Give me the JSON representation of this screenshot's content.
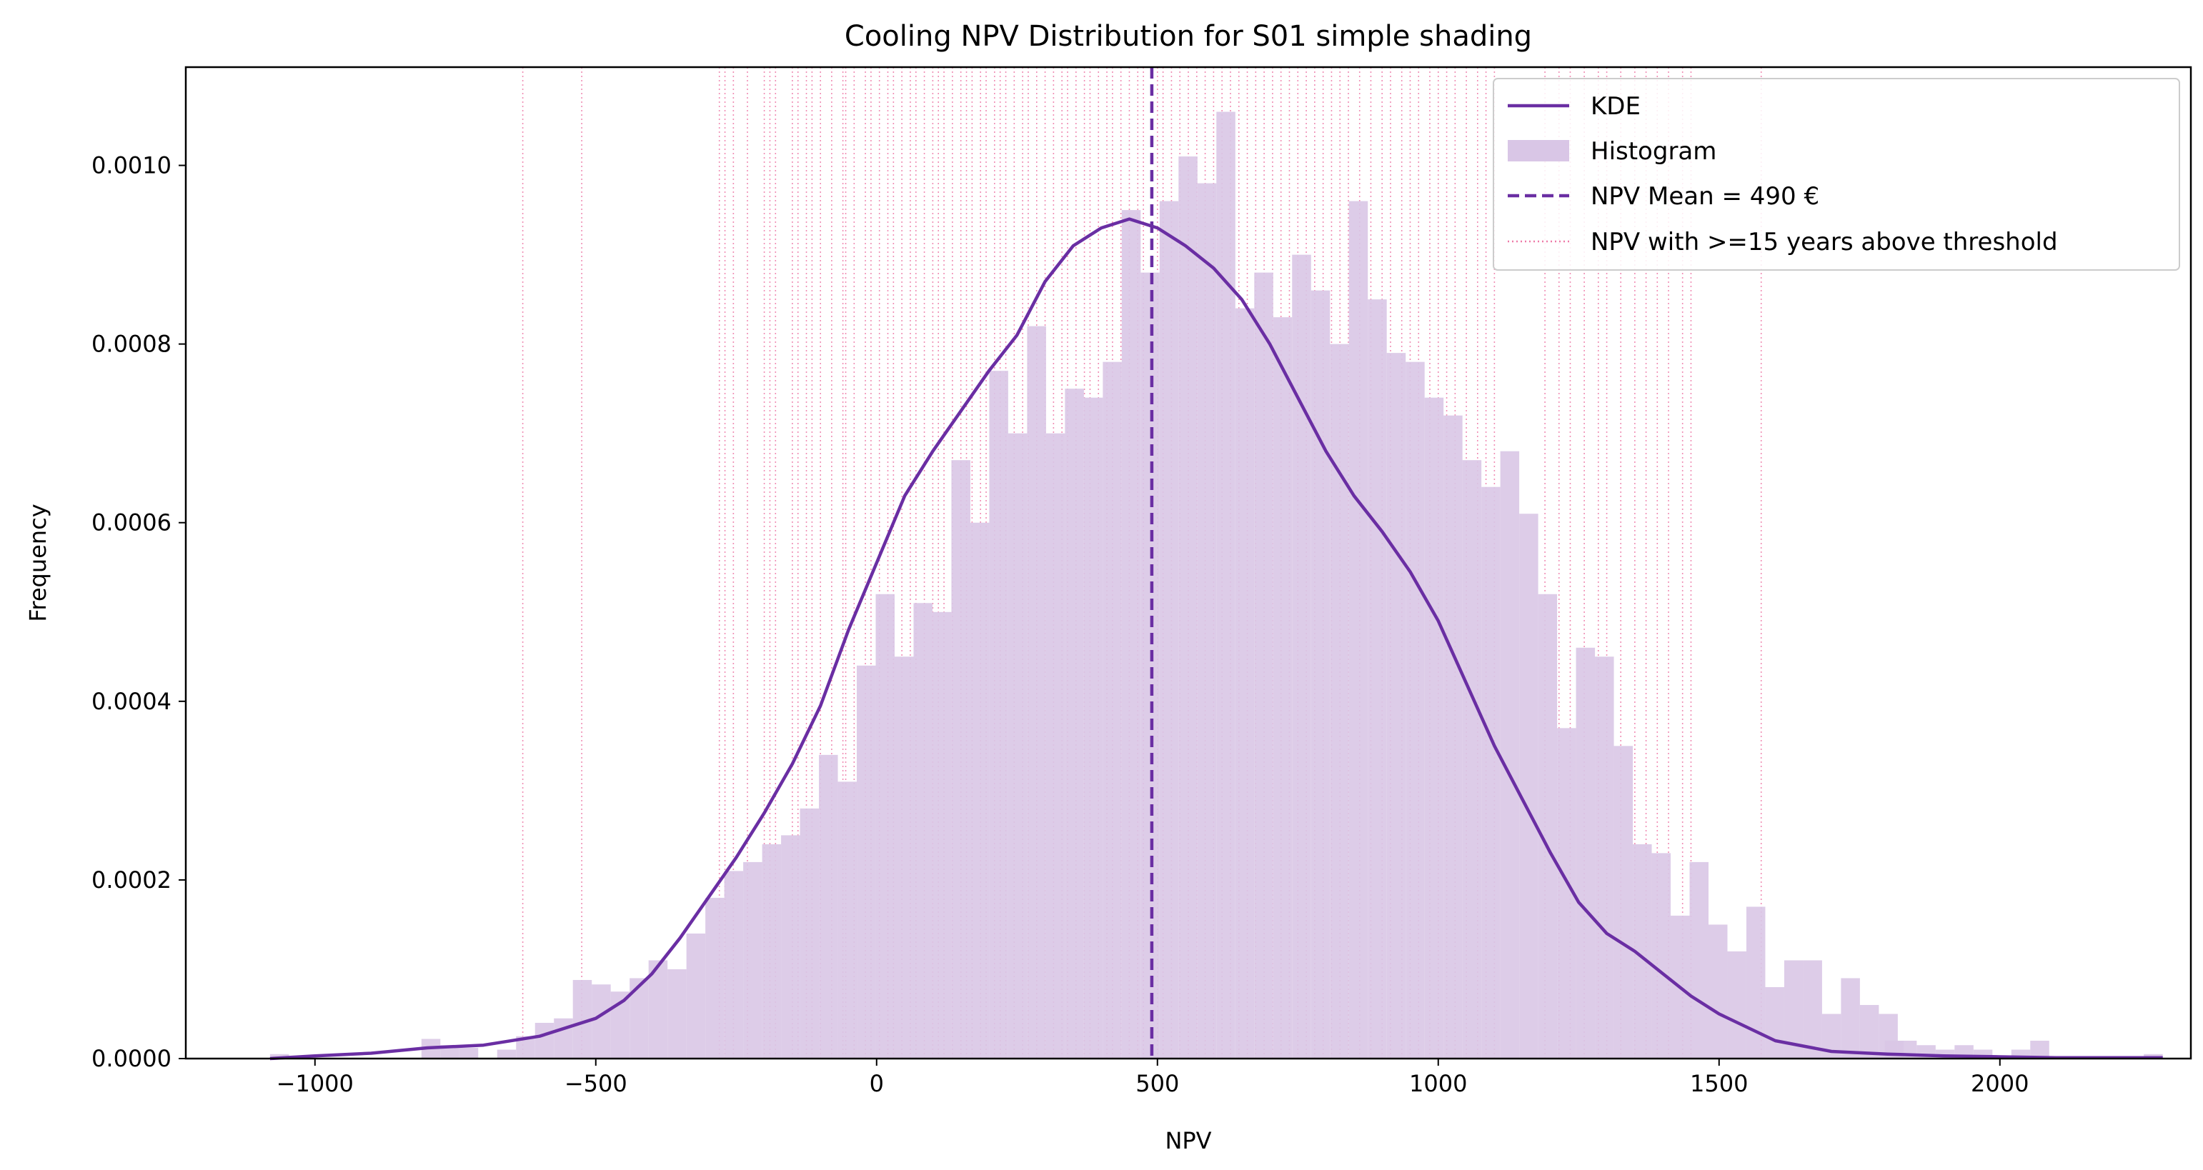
{
  "chart_data": {
    "type": "histogram",
    "title": "Cooling NPV Distribution for S01 simple shading",
    "xlabel": "NPV",
    "ylabel": "Frequency",
    "xlim": [
      -1230,
      2340
    ],
    "ylim": [
      0,
      0.00111
    ],
    "x_ticks": [
      -1000,
      -500,
      0,
      500,
      1000,
      1500,
      2000
    ],
    "x_tick_labels": [
      "−1000",
      "−500",
      "0",
      "500",
      "1000",
      "1500",
      "2000"
    ],
    "y_ticks": [
      0,
      0.0002,
      0.0004,
      0.0006,
      0.0008,
      0.001
    ],
    "y_tick_labels": [
      "0.0000",
      "0.0002",
      "0.0004",
      "0.0006",
      "0.0008",
      "0.0010"
    ],
    "grid": false,
    "legend_position": "top-right",
    "colors": {
      "kde": "#6a2ea3",
      "histogram": "#d9c6e6",
      "mean": "#6a2ea3",
      "threshold": "#ee7aa8"
    },
    "legend": [
      {
        "label": "KDE",
        "style": "line"
      },
      {
        "label": "Histogram",
        "style": "patch"
      },
      {
        "label": "NPV Mean = 490 €",
        "style": "dashed"
      },
      {
        "label": "NPV with >=15 years above threshold",
        "style": "dotted"
      }
    ],
    "histogram": {
      "bin_start": -1080,
      "bin_width": 33.7,
      "values": [
        5e-06,
        0,
        0,
        0,
        0,
        0,
        0,
        0,
        2.2e-05,
        1.5e-05,
        1.2e-05,
        0,
        1e-05,
        2.5e-05,
        4e-05,
        4.5e-05,
        8.8e-05,
        8.3e-05,
        7.5e-05,
        9e-05,
        0.00011,
        0.0001,
        0.00014,
        0.00018,
        0.00021,
        0.00022,
        0.00024,
        0.00025,
        0.00028,
        0.00034,
        0.00031,
        0.00044,
        0.00052,
        0.00045,
        0.00051,
        0.0005,
        0.00067,
        0.0006,
        0.00077,
        0.0007,
        0.00082,
        0.0007,
        0.00075,
        0.00074,
        0.00078,
        0.00095,
        0.00088,
        0.00096,
        0.00101,
        0.00098,
        0.00106,
        0.00084,
        0.00088,
        0.00083,
        0.0009,
        0.00086,
        0.0008,
        0.00096,
        0.00085,
        0.00079,
        0.00078,
        0.00074,
        0.00072,
        0.00067,
        0.00064,
        0.00068,
        0.00061,
        0.00052,
        0.00037,
        0.00046,
        0.00045,
        0.00035,
        0.00024,
        0.00023,
        0.00016,
        0.00022,
        0.00015,
        0.00012,
        0.00017,
        8e-05,
        0.00011,
        0.00011,
        5e-05,
        9e-05,
        6e-05,
        5e-05,
        2e-05,
        1.5e-05,
        1e-05,
        1.5e-05,
        1e-05,
        3e-06,
        1e-05,
        2e-05,
        0,
        0,
        0,
        0,
        0,
        5e-06
      ],
      "extra_bars": [
        {
          "x": 1795,
          "value": 2e-05
        }
      ]
    },
    "kde": {
      "x": [
        -1080,
        -1000,
        -900,
        -800,
        -700,
        -600,
        -500,
        -450,
        -400,
        -350,
        -300,
        -250,
        -200,
        -150,
        -100,
        -50,
        0,
        50,
        100,
        150,
        200,
        250,
        300,
        350,
        400,
        450,
        500,
        550,
        600,
        650,
        700,
        750,
        800,
        850,
        900,
        950,
        1000,
        1050,
        1100,
        1150,
        1200,
        1250,
        1300,
        1350,
        1400,
        1450,
        1500,
        1600,
        1700,
        1800,
        1900,
        2000,
        2100,
        2200,
        2290
      ],
      "y": [
        0,
        3e-06,
        6e-06,
        1.2e-05,
        1.5e-05,
        2.5e-05,
        4.5e-05,
        6.5e-05,
        9.5e-05,
        0.000135,
        0.00018,
        0.000225,
        0.000275,
        0.00033,
        0.000395,
        0.00048,
        0.000555,
        0.00063,
        0.00068,
        0.000725,
        0.00077,
        0.00081,
        0.00087,
        0.00091,
        0.00093,
        0.00094,
        0.00093,
        0.00091,
        0.000885,
        0.00085,
        0.0008,
        0.00074,
        0.00068,
        0.00063,
        0.00059,
        0.000545,
        0.00049,
        0.00042,
        0.00035,
        0.00029,
        0.00023,
        0.000175,
        0.00014,
        0.00012,
        9.5e-05,
        7e-05,
        5e-05,
        2e-05,
        8e-06,
        5e-06,
        3e-06,
        2e-06,
        1e-06,
        1e-06,
        1e-06
      ]
    },
    "mean": 490,
    "threshold_lines": [
      -630,
      -525,
      -280,
      -270,
      -255,
      -230,
      -200,
      -190,
      -180,
      -150,
      -140,
      -125,
      -115,
      -100,
      -80,
      -60,
      -55,
      -40,
      -20,
      -10,
      5,
      20,
      30,
      45,
      60,
      70,
      85,
      100,
      110,
      120,
      135,
      150,
      160,
      170,
      185,
      195,
      210,
      220,
      230,
      245,
      260,
      270,
      285,
      300,
      315,
      330,
      340,
      355,
      370,
      380,
      395,
      410,
      420,
      435,
      450,
      465,
      475,
      500,
      510,
      525,
      540,
      555,
      570,
      585,
      600,
      615,
      630,
      645,
      660,
      675,
      690,
      705,
      720,
      735,
      750,
      765,
      780,
      795,
      810,
      825,
      840,
      860,
      880,
      900,
      915,
      935,
      950,
      965,
      985,
      1000,
      1015,
      1030,
      1050,
      1070,
      1085,
      1100,
      1190,
      1215,
      1235,
      1260,
      1285,
      1300,
      1325,
      1350,
      1370,
      1390,
      1410,
      1435,
      1450,
      1575
    ]
  }
}
